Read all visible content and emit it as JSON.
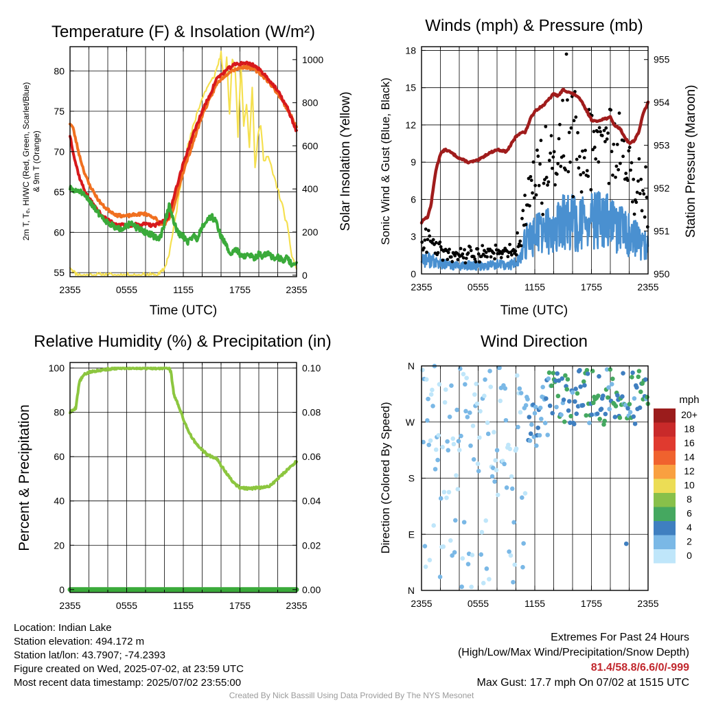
{
  "panels": {
    "temperature": {
      "title": "Temperature (F) & Insolation (W/m²)",
      "ylabel_left_line1": "2m T, Tₑ, HI/WC (Red, Green, Scarlet/Blue)",
      "ylabel_left_line2": "& 9m T (Orange)",
      "ylabel_right": "Solar Insolation (Yellow)",
      "xlabel": "Time (UTC)"
    },
    "winds": {
      "title": "Winds (mph) & Pressure (mb)",
      "ylabel_left": "Sonic Wind & Gust (Blue, Black)",
      "ylabel_right": "Station Pressure (Maroon)",
      "xlabel": "Time (UTC)"
    },
    "humidity": {
      "title": "Relative Humidity (%) & Precipitation (in)",
      "ylabel_left": "Percent & Precipitation"
    },
    "direction": {
      "title": "Wind Direction",
      "ylabel_left": "Direction (Colored By Speed)",
      "legend_title": "mph"
    }
  },
  "chart_data": [
    {
      "type": "line",
      "x_ticks": [
        "2355",
        "0555",
        "1155",
        "1755",
        "2355"
      ],
      "x_range_hours": [
        0,
        24
      ],
      "yticks_left": [
        55,
        60,
        65,
        70,
        75,
        80
      ],
      "ylim_left": [
        54.5,
        83
      ],
      "yticks_right": [
        0,
        200,
        400,
        600,
        800,
        1000
      ],
      "ylim_right": [
        -7,
        1060
      ],
      "colors": {
        "temp_2m": "#d7191c",
        "temp_9m": "#f07020",
        "dewpoint": "#3aaa3a",
        "heat_index": "#c0302a",
        "insolation": "#f5e050"
      },
      "series": [
        {
          "key": "temp_2m",
          "hours": [
            0,
            0.5,
            1,
            1.5,
            2,
            2.5,
            3,
            3.5,
            4,
            5,
            6,
            7,
            8,
            9,
            10,
            10.5,
            11,
            11.5,
            12,
            13,
            14,
            15,
            15.5,
            16,
            16.5,
            17,
            17.5,
            18,
            18.5,
            19,
            19.5,
            20,
            20.5,
            21,
            21.5,
            22,
            22.5,
            23,
            23.5,
            24
          ],
          "values": [
            72,
            69,
            66.8,
            65.3,
            64.2,
            63.4,
            62.6,
            62,
            61.5,
            61,
            60.8,
            61,
            61,
            60.8,
            61.5,
            62,
            64.5,
            66.5,
            68.5,
            72,
            75,
            77.5,
            79,
            79.5,
            80,
            80.5,
            80.8,
            80.9,
            81,
            80.9,
            80.7,
            80.2,
            79.7,
            79,
            78.3,
            77.5,
            76.5,
            75.5,
            74,
            72.5
          ]
        },
        {
          "key": "temp_9m",
          "hours": [
            0,
            0.3,
            0.7,
            1,
            1.5,
            2,
            2.5,
            3,
            3.5,
            4,
            5,
            6,
            7,
            8,
            9,
            9.5,
            10,
            10.5,
            11,
            11.5,
            12,
            13,
            14,
            15,
            15.5,
            16,
            16.5,
            17,
            17.5,
            18,
            18.5,
            19,
            19.5,
            20,
            20.5,
            21,
            21.5,
            22,
            22.5,
            23,
            23.5,
            24
          ],
          "values": [
            73.5,
            73,
            71,
            69.5,
            67.5,
            66,
            65,
            64,
            63.3,
            62.8,
            62.1,
            62,
            62.2,
            62.3,
            61.8,
            61,
            61,
            61.6,
            63,
            65.5,
            67.5,
            71,
            74.5,
            77,
            78.3,
            79,
            79.5,
            80,
            80.2,
            80.4,
            80.5,
            80.4,
            80.2,
            79.8,
            79.3,
            78.7,
            78,
            77.2,
            76.3,
            75.3,
            74.2,
            73
          ]
        },
        {
          "key": "dewpoint",
          "hours": [
            0,
            0.5,
            1,
            1.5,
            2,
            2.5,
            3,
            3.5,
            4,
            4.5,
            5,
            5.5,
            6,
            6.5,
            7,
            7.5,
            8,
            8.5,
            9,
            9.5,
            10,
            10.5,
            11,
            11.5,
            12,
            12.5,
            13,
            13.5,
            14,
            14.5,
            15,
            15.5,
            16,
            16.5,
            17,
            17.5,
            18,
            18.5,
            19,
            19.5,
            20,
            20.5,
            21,
            21.5,
            22,
            22.5,
            23,
            23.5,
            24
          ],
          "values": [
            65.5,
            65,
            65.2,
            64.5,
            64,
            63.2,
            62.4,
            61.8,
            61.2,
            60.8,
            60.4,
            60.5,
            60.9,
            61,
            60.6,
            60.3,
            60,
            59.8,
            59.4,
            59.2,
            61,
            63.3,
            61.2,
            59.8,
            59.5,
            58.8,
            59.6,
            59.2,
            60.8,
            61.5,
            62,
            61.2,
            59.5,
            58.5,
            57.2,
            58,
            57.3,
            57,
            57.2,
            56.8,
            57.3,
            57,
            57.5,
            56.8,
            57,
            56.5,
            56.8,
            56,
            56.2
          ]
        },
        {
          "key": "insolation",
          "hours": [
            0,
            0.5,
            1,
            2,
            4,
            6,
            8,
            9,
            9.5,
            10,
            10.5,
            11,
            11.5,
            12,
            12.5,
            13,
            13.5,
            14,
            14.5,
            15,
            15.5,
            16,
            16.3,
            16.6,
            16.9,
            17.2,
            17.5,
            17.8,
            18.1,
            18.4,
            18.7,
            19,
            19.3,
            19.6,
            19.9,
            20.2,
            20.5,
            21,
            21.5,
            22,
            22.5,
            23,
            23.5,
            24
          ],
          "values": [
            40,
            10,
            0,
            0,
            0,
            0,
            0,
            0,
            5,
            30,
            100,
            220,
            360,
            500,
            600,
            680,
            760,
            820,
            870,
            900,
            950,
            1030,
            900,
            1000,
            750,
            1010,
            950,
            650,
            980,
            700,
            800,
            600,
            880,
            500,
            640,
            700,
            540,
            550,
            470,
            400,
            320,
            230,
            90,
            30
          ]
        }
      ]
    },
    {
      "type": "scatter",
      "x_ticks": [
        "2355",
        "0555",
        "1155",
        "1755",
        "2355"
      ],
      "x_range_hours": [
        0,
        24
      ],
      "yticks_left": [
        0,
        3,
        6,
        9,
        12,
        15,
        18
      ],
      "ylim_left": [
        0,
        18.3
      ],
      "yticks_right": [
        950,
        951,
        952,
        953,
        954,
        955
      ],
      "ylim_right": [
        950,
        955.3
      ],
      "colors": {
        "wind": "#4a90d0",
        "gust": "#000000",
        "pressure": "#a01c1c"
      },
      "max_gust": 17.7,
      "series": [
        {
          "key": "wind",
          "hours": [
            0,
            1,
            2,
            3,
            4,
            5,
            6,
            7,
            8,
            9,
            10,
            10.5,
            11,
            11.5,
            12,
            13,
            14,
            15,
            16,
            17,
            18,
            19,
            20,
            21,
            22,
            23,
            24
          ],
          "values": [
            1.3,
            1.1,
            0.8,
            0.7,
            0.6,
            0.7,
            0.6,
            0.7,
            0.8,
            0.6,
            0.9,
            1.3,
            2.5,
            3,
            3.2,
            3.5,
            3.4,
            4.2,
            4.1,
            4,
            4.2,
            4.3,
            4.1,
            3.6,
            3.1,
            2.6,
            2
          ]
        },
        {
          "key": "pressure",
          "hours": [
            0,
            0.3,
            0.6,
            1,
            1.5,
            2,
            2.5,
            3,
            4,
            5,
            6,
            7,
            8,
            9,
            10,
            10.5,
            11,
            11.5,
            12,
            13,
            14,
            14.5,
            15,
            15.5,
            16,
            16.5,
            17,
            17.5,
            18,
            18.5,
            19,
            20,
            20.5,
            21,
            21.5,
            22,
            22.5,
            23,
            23.5,
            24
          ],
          "values": [
            951.2,
            951.3,
            951.3,
            951.6,
            952.4,
            952.8,
            952.9,
            952.85,
            952.7,
            952.6,
            952.65,
            952.8,
            952.9,
            952.85,
            953.2,
            953.3,
            953.3,
            953.6,
            953.8,
            953.95,
            954.2,
            954.15,
            954.3,
            954.25,
            954.2,
            954.15,
            954,
            953.8,
            953.6,
            953.55,
            953.6,
            953.65,
            953.45,
            953.4,
            953.2,
            953.05,
            953.1,
            953.3,
            953.75,
            954
          ]
        }
      ]
    },
    {
      "type": "line",
      "x_ticks": [
        "2355",
        "0555",
        "1155",
        "1755",
        "2355"
      ],
      "x_range_hours": [
        0,
        24
      ],
      "yticks_left": [
        0,
        20,
        40,
        60,
        80,
        100
      ],
      "ylim_left": [
        -1.3,
        102.5
      ],
      "yticks_right": [
        "0.00",
        "0.02",
        "0.04",
        "0.06",
        "0.08",
        "0.10"
      ],
      "colors": {
        "humidity": "#8cc63f",
        "precip": "#3aaa3a"
      },
      "series": [
        {
          "key": "humidity",
          "hours": [
            0,
            0.3,
            0.6,
            0.8,
            1,
            1.5,
            2,
            3,
            4,
            5,
            6,
            7,
            8,
            9,
            10,
            10.5,
            10.7,
            11,
            11.5,
            12,
            12.5,
            13,
            13.5,
            14,
            14.5,
            15,
            15.5,
            16,
            16.5,
            17,
            17.5,
            18,
            19,
            20,
            20.5,
            21,
            21.5,
            22,
            22.5,
            23,
            23.5,
            24
          ],
          "values": [
            80,
            81,
            82,
            88,
            94,
            97,
            98,
            99,
            99.5,
            100,
            100,
            100,
            100,
            100,
            100,
            100,
            98,
            88,
            83,
            77,
            72,
            68,
            65,
            63,
            61,
            60,
            59.5,
            56,
            53,
            50,
            47.5,
            46,
            45.5,
            46,
            46,
            46.5,
            48,
            50,
            52,
            54,
            56,
            58
          ]
        },
        {
          "key": "precip",
          "hours": [
            0,
            24
          ],
          "values": [
            0,
            0
          ]
        }
      ]
    },
    {
      "type": "scatter",
      "x_ticks": [
        "2355",
        "0555",
        "1155",
        "1755",
        "2355"
      ],
      "x_range_hours": [
        0,
        24
      ],
      "yticks_left": [
        "N",
        "W",
        "S",
        "E",
        "N"
      ],
      "ylim_deg": [
        360,
        0
      ],
      "legend_labels": [
        "20+",
        "18",
        "16",
        "14",
        "12",
        "10",
        "8",
        "6",
        "4",
        "2",
        "0"
      ],
      "legend_colors": [
        "#9b1c1c",
        "#c92a2a",
        "#e03a2f",
        "#f0622e",
        "#f9a040",
        "#ecdd55",
        "#88c04a",
        "#45a860",
        "#3f7fc0",
        "#7ab8e6",
        "#bfe6fa"
      ]
    }
  ],
  "footer": {
    "location": "Location: Indian Lake",
    "elevation": "Station elevation: 494.172 m",
    "latlon": "Station lat/lon: 43.7907; -74.2393",
    "created": "Figure created on Wed, 2025-07-02, at 23:59 UTC",
    "recent": "Most recent data timestamp: 2025/07/02 23:55:00",
    "extremes_title": "Extremes For Past 24 Hours",
    "extremes_sub": "(High/Low/Max Wind/Precipitation/Snow Depth)",
    "extremes_values": "81.4/58.8/6.6/0/-999",
    "max_gust": "Max Gust: 17.7 mph On 07/02 at 1515 UTC",
    "credit": "Created By Nick Bassill Using Data Provided By The NYS Mesonet"
  }
}
